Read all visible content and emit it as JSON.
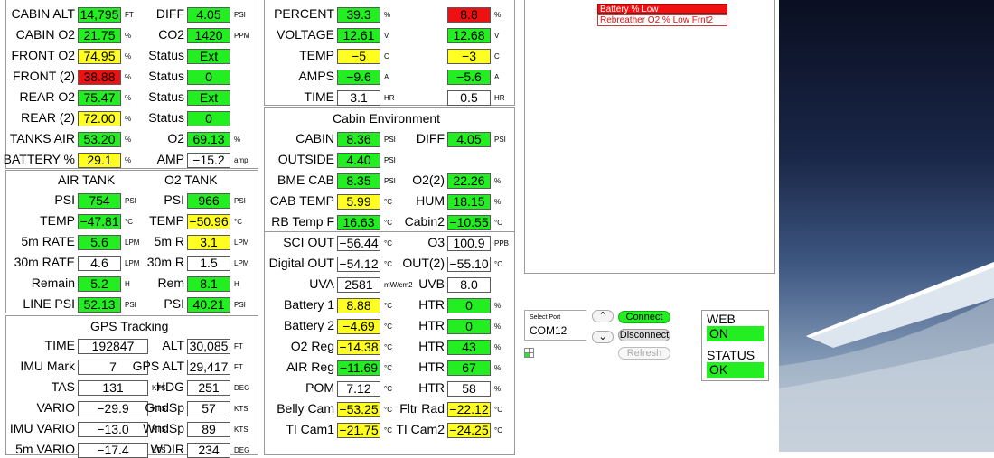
{
  "alerts": [
    "Battery % Low",
    "Rebreather O2 % Low Frnt2"
  ],
  "colors": {
    "green": "#22ee22",
    "yellow": "#ffff22",
    "red": "#ee1111"
  },
  "cabin": [
    {
      "label": "CABIN ALT",
      "value": "14,795",
      "unit": "FT",
      "status": "green",
      "label2": "DIFF",
      "value2": "4.05",
      "unit2": "PSI",
      "status2": "green"
    },
    {
      "label": "CABIN O2",
      "value": "21.75",
      "unit": "%",
      "status": "green",
      "label2": "CO2",
      "value2": "1420",
      "unit2": "PPM",
      "status2": "green"
    },
    {
      "label": "FRONT O2",
      "value": "74.95",
      "unit": "%",
      "status": "yellow",
      "label2": "Status",
      "value2": "Ext",
      "unit2": "",
      "status2": "green"
    },
    {
      "label": "FRONT (2)",
      "value": "38.88",
      "unit": "%",
      "status": "red",
      "label2": "Status",
      "value2": "0",
      "unit2": "",
      "status2": "green"
    },
    {
      "label": "REAR O2",
      "value": "75.47",
      "unit": "%",
      "status": "green",
      "label2": "Status",
      "value2": "Ext",
      "unit2": "",
      "status2": "green"
    },
    {
      "label": "REAR (2)",
      "value": "72.00",
      "unit": "%",
      "status": "yellow",
      "label2": "Status",
      "value2": "0",
      "unit2": "",
      "status2": "green"
    },
    {
      "label": "TANKS AIR",
      "value": "53.20",
      "unit": "%",
      "status": "green",
      "label2": "O2",
      "value2": "69.13",
      "unit2": "%",
      "status2": "green"
    },
    {
      "label": "BATTERY %",
      "value": "29.1",
      "unit": "%",
      "status": "yellow",
      "label2": "AMP",
      "value2": "−15.2",
      "unit2": "amp",
      "status2": "white"
    }
  ],
  "tanks": {
    "title_air": "AIR TANK",
    "title_o2": "O2 TANK",
    "rows": [
      {
        "label": "PSI",
        "value": "754",
        "unit": "PSI",
        "status": "green",
        "label2": "PSI",
        "value2": "966",
        "unit2": "PSI",
        "status2": "green"
      },
      {
        "label": "TEMP",
        "value": "−47.81",
        "unit": "°C",
        "status": "green",
        "label2": "TEMP",
        "value2": "−50.96",
        "unit2": "°C",
        "status2": "yellow"
      },
      {
        "label": "5m RATE",
        "value": "5.6",
        "unit": "LPM",
        "status": "green",
        "label2": "5m R",
        "value2": "3.1",
        "unit2": "LPM",
        "status2": "yellow"
      },
      {
        "label": "30m RATE",
        "value": "4.6",
        "unit": "LPM",
        "status": "white",
        "label2": "30m R",
        "value2": "1.5",
        "unit2": "LPM",
        "status2": "white"
      },
      {
        "label": "Remain",
        "value": "5.2",
        "unit": "H",
        "status": "green",
        "label2": "Rem",
        "value2": "8.1",
        "unit2": "H",
        "status2": "green"
      },
      {
        "label": "LINE PSI",
        "value": "52.13",
        "unit": "PSI",
        "status": "green",
        "label2": "PSI",
        "value2": "40.21",
        "unit2": "PSI",
        "status2": "green"
      }
    ]
  },
  "gps": {
    "title": "GPS Tracking",
    "rows": [
      {
        "label": "TIME",
        "value": "192847",
        "unit": "",
        "status": "white",
        "label2": "ALT",
        "value2": "30,085",
        "unit2": "FT",
        "status2": "white"
      },
      {
        "label": "IMU Mark",
        "value": "7",
        "unit": "",
        "status": "white",
        "label2": "GPS ALT",
        "value2": "29,417",
        "unit2": "FT",
        "status2": "white"
      },
      {
        "label": "TAS",
        "value": "131",
        "unit": "KTS",
        "status": "white",
        "label2": "HDG",
        "value2": "251",
        "unit2": "DEG",
        "status2": "white"
      },
      {
        "label": "VARIO",
        "value": "−29.9",
        "unit": "KTS",
        "status": "white",
        "label2": "GndSp",
        "value2": "57",
        "unit2": "KTS",
        "status2": "white"
      },
      {
        "label": "IMU VARIO",
        "value": "−13.0",
        "unit": "KTS",
        "status": "white",
        "label2": "WndSp",
        "value2": "89",
        "unit2": "KTS",
        "status2": "white"
      },
      {
        "label": "5m VARIO",
        "value": "−17.4",
        "unit": "KTS",
        "status": "white",
        "label2": "WDIR",
        "value2": "234",
        "unit2": "DEG",
        "status2": "white"
      }
    ]
  },
  "power": [
    {
      "label": "PERCENT",
      "value": "39.3",
      "unit": "%",
      "status": "green",
      "value2": "8.8",
      "unit2": "%",
      "status2": "red"
    },
    {
      "label": "VOLTAGE",
      "value": "12.61",
      "unit": "V",
      "status": "green",
      "value2": "12.68",
      "unit2": "V",
      "status2": "green"
    },
    {
      "label": "TEMP",
      "value": "−5",
      "unit": "C",
      "status": "yellow",
      "value2": "−3",
      "unit2": "C",
      "status2": "yellow"
    },
    {
      "label": "AMPS",
      "value": "−9.6",
      "unit": "A",
      "status": "green",
      "value2": "−5.6",
      "unit2": "A",
      "status2": "green"
    },
    {
      "label": "TIME",
      "value": "3.1",
      "unit": "HR",
      "status": "white",
      "value2": "0.5",
      "unit2": "HR",
      "status2": "white"
    }
  ],
  "cabin_env": {
    "title": "Cabin Environment",
    "rows": [
      {
        "label": "CABIN",
        "value": "8.36",
        "unit": "PSI",
        "status": "green",
        "label2": "DIFF",
        "value2": "4.05",
        "unit2": "PSI",
        "status2": "green"
      },
      {
        "label": "OUTSIDE",
        "value": "4.40",
        "unit": "PSI",
        "status": "green",
        "label2": "",
        "value2": "",
        "unit2": "",
        "status2": "none"
      },
      {
        "label": "BME CAB",
        "value": "8.35",
        "unit": "PSI",
        "status": "green",
        "label2": "O2(2)",
        "value2": "22.26",
        "unit2": "%",
        "status2": "green"
      },
      {
        "label": "CAB TEMP",
        "value": "5.99",
        "unit": "°C",
        "status": "yellow",
        "label2": "HUM",
        "value2": "18.15",
        "unit2": "%",
        "status2": "green"
      },
      {
        "label": "RB Temp F",
        "value": "16.63",
        "unit": "°C",
        "status": "green",
        "label2": "Cabin2",
        "value2": "−10.55",
        "unit2": "°C",
        "status2": "green"
      }
    ]
  },
  "sensors": [
    {
      "label": "SCI OUT",
      "value": "−56.44",
      "unit": "°C",
      "status": "white",
      "label2": "O3",
      "value2": "100.9",
      "unit2": "PPB",
      "status2": "white"
    },
    {
      "label": "Digital OUT",
      "value": "−54.12",
      "unit": "°C",
      "status": "white",
      "label2": "OUT(2)",
      "value2": "−55.10",
      "unit2": "°C",
      "status2": "white"
    },
    {
      "label": "UVA",
      "value": "2581",
      "unit": "mW/cm2",
      "status": "white",
      "label2": "UVB",
      "value2": "8.0",
      "unit2": "",
      "status2": "white"
    },
    {
      "label": "Battery 1",
      "value": "8.88",
      "unit": "°C",
      "status": "yellow",
      "label2": "HTR",
      "value2": "0",
      "unit2": "%",
      "status2": "green"
    },
    {
      "label": "Battery 2",
      "value": "−4.69",
      "unit": "°C",
      "status": "yellow",
      "label2": "HTR",
      "value2": "0",
      "unit2": "%",
      "status2": "green"
    },
    {
      "label": "O2 Reg",
      "value": "−14.38",
      "unit": "°C",
      "status": "yellow",
      "label2": "HTR",
      "value2": "43",
      "unit2": "%",
      "status2": "green"
    },
    {
      "label": "AIR Reg",
      "value": "−11.69",
      "unit": "°C",
      "status": "green",
      "label2": "HTR",
      "value2": "67",
      "unit2": "%",
      "status2": "green"
    },
    {
      "label": "POM",
      "value": "7.12",
      "unit": "°C",
      "status": "white",
      "label2": "HTR",
      "value2": "58",
      "unit2": "%",
      "status2": "white"
    },
    {
      "label": "Belly Cam",
      "value": "−53.25",
      "unit": "°C",
      "status": "yellow",
      "label2": "Fltr Rad",
      "value2": "−22.12",
      "unit2": "°C",
      "status2": "yellow"
    },
    {
      "label": "TI Cam1",
      "value": "−21.75",
      "unit": "°C",
      "status": "yellow",
      "label2": "TI Cam2",
      "value2": "−24.25",
      "unit2": "°C",
      "status2": "yellow"
    }
  ],
  "port": {
    "label": "Select Port",
    "value": "COM12",
    "connect": "Connect",
    "disconnect": "Disconnect",
    "refresh": "Refresh"
  },
  "web": {
    "label": "WEB",
    "value": "ON",
    "status_label": "STATUS",
    "status_value": "OK"
  }
}
